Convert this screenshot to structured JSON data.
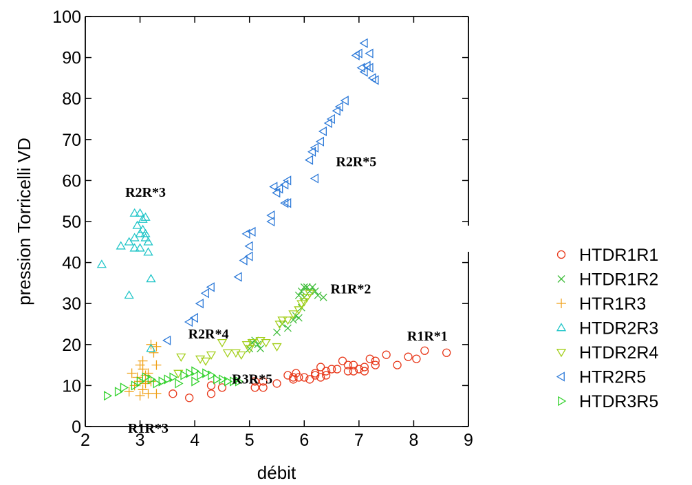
{
  "chart_data": {
    "type": "scatter",
    "xlabel": "débit",
    "ylabel": "pression Torricelli VD",
    "xlim": [
      2,
      9
    ],
    "ylim": [
      0,
      100
    ],
    "xticks": [
      "2",
      "3",
      "4",
      "5",
      "6",
      "7",
      "8",
      "9"
    ],
    "yticks": [
      "0",
      "10",
      "20",
      "30",
      "40",
      "50",
      "60",
      "70",
      "80",
      "90",
      "100"
    ],
    "grid": false,
    "legend_position": "right",
    "series": [
      {
        "name": "HTDR1R1",
        "marker": "circle",
        "color": "#e8381a",
        "points": [
          [
            3.6,
            8
          ],
          [
            3.9,
            7
          ],
          [
            4.3,
            8
          ],
          [
            4.3,
            10
          ],
          [
            4.5,
            9.5
          ],
          [
            5.1,
            9.5
          ],
          [
            5.1,
            11
          ],
          [
            5.25,
            9.5
          ],
          [
            5.25,
            11
          ],
          [
            5.5,
            10.5
          ],
          [
            5.7,
            12.5
          ],
          [
            5.8,
            12
          ],
          [
            5.8,
            11.5
          ],
          [
            5.85,
            13
          ],
          [
            5.9,
            12
          ],
          [
            6.0,
            12
          ],
          [
            6.1,
            11.5
          ],
          [
            6.2,
            12.5
          ],
          [
            6.2,
            13
          ],
          [
            6.3,
            14.5
          ],
          [
            6.3,
            12
          ],
          [
            6.4,
            12.5
          ],
          [
            6.4,
            13.5
          ],
          [
            6.5,
            14
          ],
          [
            6.6,
            14
          ],
          [
            6.7,
            16
          ],
          [
            6.8,
            13.5
          ],
          [
            6.8,
            15
          ],
          [
            6.9,
            15
          ],
          [
            6.9,
            13.5
          ],
          [
            7.0,
            14
          ],
          [
            7.1,
            14.5
          ],
          [
            7.1,
            13.5
          ],
          [
            7.2,
            16.5
          ],
          [
            7.3,
            15
          ],
          [
            7.3,
            16
          ],
          [
            7.5,
            17.5
          ],
          [
            7.7,
            15
          ],
          [
            7.9,
            17
          ],
          [
            8.05,
            16.5
          ],
          [
            8.2,
            18.5
          ],
          [
            8.6,
            18
          ]
        ]
      },
      {
        "name": "HTDR1R2",
        "marker": "x",
        "color": "#3fbd3a",
        "points": [
          [
            5.0,
            19
          ],
          [
            5.05,
            20.5
          ],
          [
            5.1,
            21
          ],
          [
            5.15,
            20
          ],
          [
            5.2,
            19
          ],
          [
            5.5,
            23
          ],
          [
            5.6,
            25
          ],
          [
            5.7,
            24
          ],
          [
            5.8,
            26
          ],
          [
            5.85,
            27
          ],
          [
            5.9,
            26.5
          ],
          [
            5.95,
            29
          ],
          [
            5.9,
            32
          ],
          [
            5.95,
            33
          ],
          [
            6.0,
            34
          ],
          [
            6.0,
            31.5
          ],
          [
            6.05,
            34
          ],
          [
            6.1,
            33
          ],
          [
            6.15,
            34
          ],
          [
            6.2,
            33
          ],
          [
            6.25,
            32
          ],
          [
            6.35,
            31.5
          ]
        ]
      },
      {
        "name": "HTR1R3",
        "marker": "plus",
        "color": "#f0a21a",
        "points": [
          [
            2.8,
            8.5
          ],
          [
            2.85,
            13
          ],
          [
            2.9,
            10
          ],
          [
            2.95,
            12
          ],
          [
            3.0,
            7.5
          ],
          [
            3.0,
            11
          ],
          [
            3.0,
            15
          ],
          [
            3.05,
            9
          ],
          [
            3.05,
            14
          ],
          [
            3.05,
            16
          ],
          [
            3.1,
            10.5
          ],
          [
            3.1,
            12.5
          ],
          [
            3.15,
            8
          ],
          [
            3.15,
            13
          ],
          [
            3.2,
            11
          ],
          [
            3.2,
            20
          ],
          [
            3.25,
            18
          ],
          [
            3.3,
            15
          ],
          [
            3.3,
            19.5
          ],
          [
            3.3,
            8
          ]
        ]
      },
      {
        "name": "HTDR2R3",
        "marker": "triangle-up",
        "color": "#21c5c8",
        "points": [
          [
            2.3,
            39.5
          ],
          [
            2.65,
            44
          ],
          [
            2.8,
            32
          ],
          [
            2.8,
            45
          ],
          [
            2.9,
            43.5
          ],
          [
            2.9,
            46
          ],
          [
            2.9,
            52
          ],
          [
            2.95,
            49
          ],
          [
            3.0,
            47
          ],
          [
            3.0,
            52
          ],
          [
            3.0,
            43.5
          ],
          [
            3.05,
            48
          ],
          [
            3.05,
            50.5
          ],
          [
            3.1,
            46
          ],
          [
            3.1,
            51
          ],
          [
            3.1,
            47
          ],
          [
            3.15,
            42.5
          ],
          [
            3.15,
            45
          ],
          [
            3.2,
            36
          ],
          [
            3.2,
            19
          ]
        ]
      },
      {
        "name": "HTDR2R4",
        "marker": "triangle-down",
        "color": "#a4cf1c",
        "points": [
          [
            3.7,
            13
          ],
          [
            3.75,
            17
          ],
          [
            4.1,
            16.5
          ],
          [
            4.2,
            16
          ],
          [
            4.3,
            17.5
          ],
          [
            4.5,
            20.5
          ],
          [
            4.6,
            18
          ],
          [
            4.75,
            18
          ],
          [
            4.85,
            17.5
          ],
          [
            4.95,
            20
          ],
          [
            5.0,
            19
          ],
          [
            5.05,
            20.5
          ],
          [
            5.2,
            21
          ],
          [
            5.3,
            20.5
          ],
          [
            5.5,
            19.5
          ],
          [
            5.55,
            25
          ],
          [
            5.6,
            26
          ],
          [
            5.7,
            26
          ],
          [
            5.8,
            27.5
          ],
          [
            5.9,
            28.5
          ],
          [
            5.95,
            30
          ],
          [
            6.0,
            30.5
          ],
          [
            6.05,
            31.5
          ],
          [
            6.1,
            32.5
          ]
        ]
      },
      {
        "name": "HTR2R5",
        "marker": "triangle-left",
        "color": "#2c79d8",
        "points": [
          [
            3.5,
            21
          ],
          [
            3.9,
            25.5
          ],
          [
            4.0,
            26.5
          ],
          [
            4.1,
            30
          ],
          [
            4.2,
            32.5
          ],
          [
            4.3,
            34
          ],
          [
            4.8,
            36.5
          ],
          [
            4.9,
            40.5
          ],
          [
            5.0,
            41.5
          ],
          [
            5.0,
            44
          ],
          [
            4.95,
            47
          ],
          [
            5.05,
            47.5
          ],
          [
            5.4,
            50
          ],
          [
            5.4,
            51.5
          ],
          [
            5.45,
            58.5
          ],
          [
            5.5,
            57
          ],
          [
            5.55,
            58
          ],
          [
            5.65,
            54.5
          ],
          [
            5.7,
            54.5
          ],
          [
            5.65,
            59
          ],
          [
            5.7,
            60
          ],
          [
            6.2,
            60.5
          ],
          [
            6.1,
            65
          ],
          [
            6.15,
            67
          ],
          [
            6.2,
            68
          ],
          [
            6.3,
            69.5
          ],
          [
            6.35,
            72
          ],
          [
            6.45,
            74
          ],
          [
            6.5,
            75
          ],
          [
            6.6,
            77
          ],
          [
            6.65,
            78
          ],
          [
            6.75,
            79.5
          ],
          [
            6.95,
            90.5
          ],
          [
            7.0,
            91
          ],
          [
            7.05,
            87.5
          ],
          [
            7.1,
            93.5
          ],
          [
            7.1,
            86.5
          ],
          [
            7.15,
            88
          ],
          [
            7.2,
            91
          ],
          [
            7.2,
            87.5
          ],
          [
            7.25,
            85
          ],
          [
            7.3,
            84.5
          ]
        ]
      },
      {
        "name": "HTDR3R5",
        "marker": "triangle-right",
        "color": "#30d12a",
        "points": [
          [
            2.4,
            7.5
          ],
          [
            2.6,
            8.5
          ],
          [
            2.7,
            9.5
          ],
          [
            2.9,
            10
          ],
          [
            3.0,
            11
          ],
          [
            3.1,
            12
          ],
          [
            3.2,
            11.5
          ],
          [
            3.3,
            10.5
          ],
          [
            3.4,
            11
          ],
          [
            3.5,
            11.5
          ],
          [
            3.6,
            12
          ],
          [
            3.7,
            10.5
          ],
          [
            3.8,
            12.5
          ],
          [
            3.9,
            13
          ],
          [
            4.0,
            13.5
          ],
          [
            4.0,
            11
          ],
          [
            4.1,
            12.5
          ],
          [
            4.2,
            13
          ],
          [
            4.3,
            12.5
          ],
          [
            4.4,
            11.5
          ],
          [
            4.5,
            11.5
          ],
          [
            4.6,
            11
          ],
          [
            4.7,
            11
          ],
          [
            4.8,
            11
          ]
        ]
      }
    ],
    "annotations": [
      {
        "text": "R2R*3",
        "x": 3.1,
        "y": 56
      },
      {
        "text": "R2R*5",
        "x": 6.95,
        "y": 63.5
      },
      {
        "text": "R2R*4",
        "x": 4.25,
        "y": 21.5
      },
      {
        "text": "R1R*2",
        "x": 6.85,
        "y": 32.5
      },
      {
        "text": "R1R*1",
        "x": 8.25,
        "y": 21
      },
      {
        "text": "R3R*5",
        "x": 5.05,
        "y": 10.5
      },
      {
        "text": "R1R*3",
        "x": 3.15,
        "y": -1.5
      }
    ]
  }
}
